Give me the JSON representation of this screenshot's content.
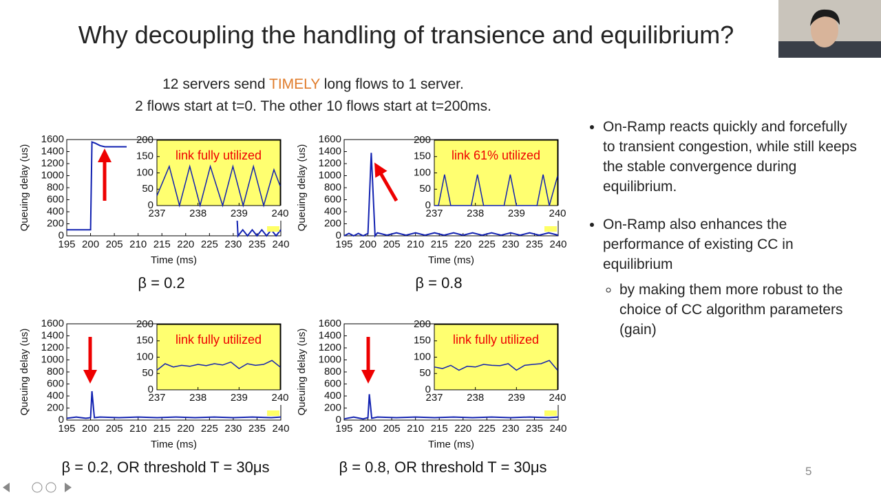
{
  "slide": {
    "title": "Why decoupling the handling of transience and equilibrium?",
    "setup_line1": [
      "12 servers send ",
      "TIMELY",
      " long flows to 1 server."
    ],
    "setup_line2": "2 flows start at t=0. The other 10 flows start at t=200ms.",
    "bullets": [
      {
        "text": "On-Ramp reacts quickly and forcefully to transient congestion, while still keeps the stable convergence during equilibrium.",
        "sub": []
      },
      {
        "text": "On-Ramp also enhances the performance of existing CC in equilibrium",
        "sub": [
          "by making them more robust to the choice of CC algorithm parameters (gain)"
        ]
      }
    ],
    "page_number": "5"
  },
  "chart_data": [
    {
      "type": "line",
      "caption": "β = 0.2",
      "xlabel": "Time (ms)",
      "ylabel": "Queuing delay (us)",
      "xlim": [
        195,
        240
      ],
      "ylim": [
        0,
        1600
      ],
      "xticks": [
        195,
        200,
        205,
        210,
        215,
        220,
        225,
        230,
        235,
        240
      ],
      "yticks": [
        0,
        200,
        400,
        600,
        800,
        1000,
        1200,
        1400,
        1600
      ],
      "color": "#1020b0",
      "x": [
        195,
        200,
        200.3,
        201,
        202,
        203,
        230,
        231,
        232,
        233,
        234,
        235,
        236,
        237,
        238,
        239,
        240
      ],
      "values": [
        100,
        100,
        1560,
        1540,
        1500,
        1480,
        1480,
        0,
        100,
        0,
        100,
        0,
        100,
        0,
        100,
        0,
        100
      ],
      "inset": {
        "annotation": "link fully utilized",
        "xlim": [
          237,
          240
        ],
        "ylim": [
          0,
          200
        ],
        "xticks": [
          237,
          238,
          239,
          240
        ],
        "yticks": [
          0,
          50,
          100,
          150,
          200
        ],
        "x": [
          237,
          237.3,
          237.55,
          237.8,
          238.05,
          238.3,
          238.6,
          238.85,
          239.1,
          239.35,
          239.6,
          239.85,
          240
        ],
        "values": [
          30,
          120,
          0,
          120,
          0,
          120,
          0,
          120,
          0,
          120,
          0,
          110,
          60
        ]
      }
    },
    {
      "type": "line",
      "caption": "β = 0.8",
      "xlabel": "Time (ms)",
      "ylabel": "Queuing delay (us)",
      "xlim": [
        195,
        240
      ],
      "ylim": [
        0,
        1600
      ],
      "xticks": [
        195,
        200,
        205,
        210,
        215,
        220,
        225,
        230,
        235,
        240
      ],
      "yticks": [
        0,
        200,
        400,
        600,
        800,
        1000,
        1200,
        1400,
        1600
      ],
      "color": "#1020b0",
      "x": [
        195,
        196,
        197,
        198,
        199,
        200,
        200.7,
        201.5,
        202,
        204,
        206,
        208,
        210,
        212,
        214,
        216,
        218,
        220,
        222,
        224,
        226,
        228,
        230,
        232,
        234,
        236,
        238,
        240
      ],
      "values": [
        0,
        40,
        0,
        40,
        0,
        40,
        1380,
        0,
        50,
        10,
        50,
        10,
        50,
        10,
        50,
        10,
        50,
        10,
        50,
        10,
        50,
        10,
        50,
        10,
        50,
        10,
        50,
        10
      ],
      "inset": {
        "annotation": "link 61% utilized",
        "xlim": [
          237,
          240
        ],
        "ylim": [
          0,
          200
        ],
        "xticks": [
          237,
          238,
          239,
          240
        ],
        "yticks": [
          0,
          50,
          100,
          150,
          200
        ],
        "x": [
          237,
          237.1,
          237.25,
          237.4,
          237.75,
          237.9,
          238.05,
          238.2,
          238.55,
          238.7,
          238.85,
          239.0,
          239.35,
          239.5,
          239.65,
          239.8,
          240
        ],
        "values": [
          0,
          0,
          95,
          0,
          0,
          0,
          95,
          0,
          0,
          0,
          95,
          0,
          0,
          0,
          95,
          0,
          90
        ]
      }
    },
    {
      "type": "line",
      "caption": "β = 0.2, OR threshold T = 30μs",
      "xlabel": "Time (ms)",
      "ylabel": "Queuing delay (us)",
      "xlim": [
        195,
        240
      ],
      "ylim": [
        0,
        1600
      ],
      "xticks": [
        195,
        200,
        205,
        210,
        215,
        220,
        225,
        230,
        235,
        240
      ],
      "yticks": [
        0,
        200,
        400,
        600,
        800,
        1000,
        1200,
        1400,
        1600
      ],
      "color": "#1020b0",
      "x": [
        195,
        197,
        199,
        200,
        200.3,
        200.8,
        202,
        206,
        210,
        214,
        218,
        222,
        226,
        230,
        234,
        238,
        240
      ],
      "values": [
        30,
        50,
        30,
        40,
        480,
        40,
        50,
        40,
        50,
        40,
        50,
        40,
        50,
        40,
        50,
        40,
        50
      ],
      "inset": {
        "annotation": "link fully utilized",
        "xlim": [
          237,
          240
        ],
        "ylim": [
          0,
          200
        ],
        "xticks": [
          237,
          238,
          239,
          240
        ],
        "yticks": [
          0,
          50,
          100,
          150,
          200
        ],
        "x": [
          237,
          237.2,
          237.4,
          237.6,
          237.8,
          238,
          238.2,
          238.4,
          238.6,
          238.8,
          239,
          239.2,
          239.4,
          239.6,
          239.8,
          240
        ],
        "values": [
          60,
          80,
          70,
          75,
          72,
          78,
          74,
          80,
          76,
          85,
          65,
          80,
          75,
          78,
          90,
          70
        ]
      }
    },
    {
      "type": "line",
      "caption": "β = 0.8, OR threshold T = 30μs",
      "xlabel": "Time (ms)",
      "ylabel": "Queuing delay (us)",
      "xlim": [
        195,
        240
      ],
      "ylim": [
        0,
        1600
      ],
      "xticks": [
        195,
        200,
        205,
        210,
        215,
        220,
        225,
        230,
        235,
        240
      ],
      "yticks": [
        0,
        200,
        400,
        600,
        800,
        1000,
        1200,
        1400,
        1600
      ],
      "color": "#1020b0",
      "x": [
        195,
        197,
        199,
        200,
        200.3,
        200.8,
        202,
        206,
        210,
        214,
        218,
        222,
        226,
        230,
        234,
        238,
        240
      ],
      "values": [
        20,
        50,
        20,
        40,
        430,
        30,
        50,
        40,
        50,
        40,
        50,
        40,
        50,
        40,
        50,
        40,
        50
      ],
      "inset": {
        "annotation": "link fully utilized",
        "xlim": [
          237,
          240
        ],
        "ylim": [
          0,
          200
        ],
        "xticks": [
          237,
          238,
          239,
          240
        ],
        "yticks": [
          0,
          50,
          100,
          150,
          200
        ],
        "x": [
          237,
          237.2,
          237.4,
          237.6,
          237.8,
          238,
          238.2,
          238.4,
          238.6,
          238.8,
          239,
          239.2,
          239.4,
          239.6,
          239.8,
          240
        ],
        "values": [
          70,
          65,
          75,
          60,
          72,
          70,
          78,
          75,
          74,
          80,
          60,
          75,
          78,
          80,
          90,
          60
        ]
      }
    }
  ]
}
